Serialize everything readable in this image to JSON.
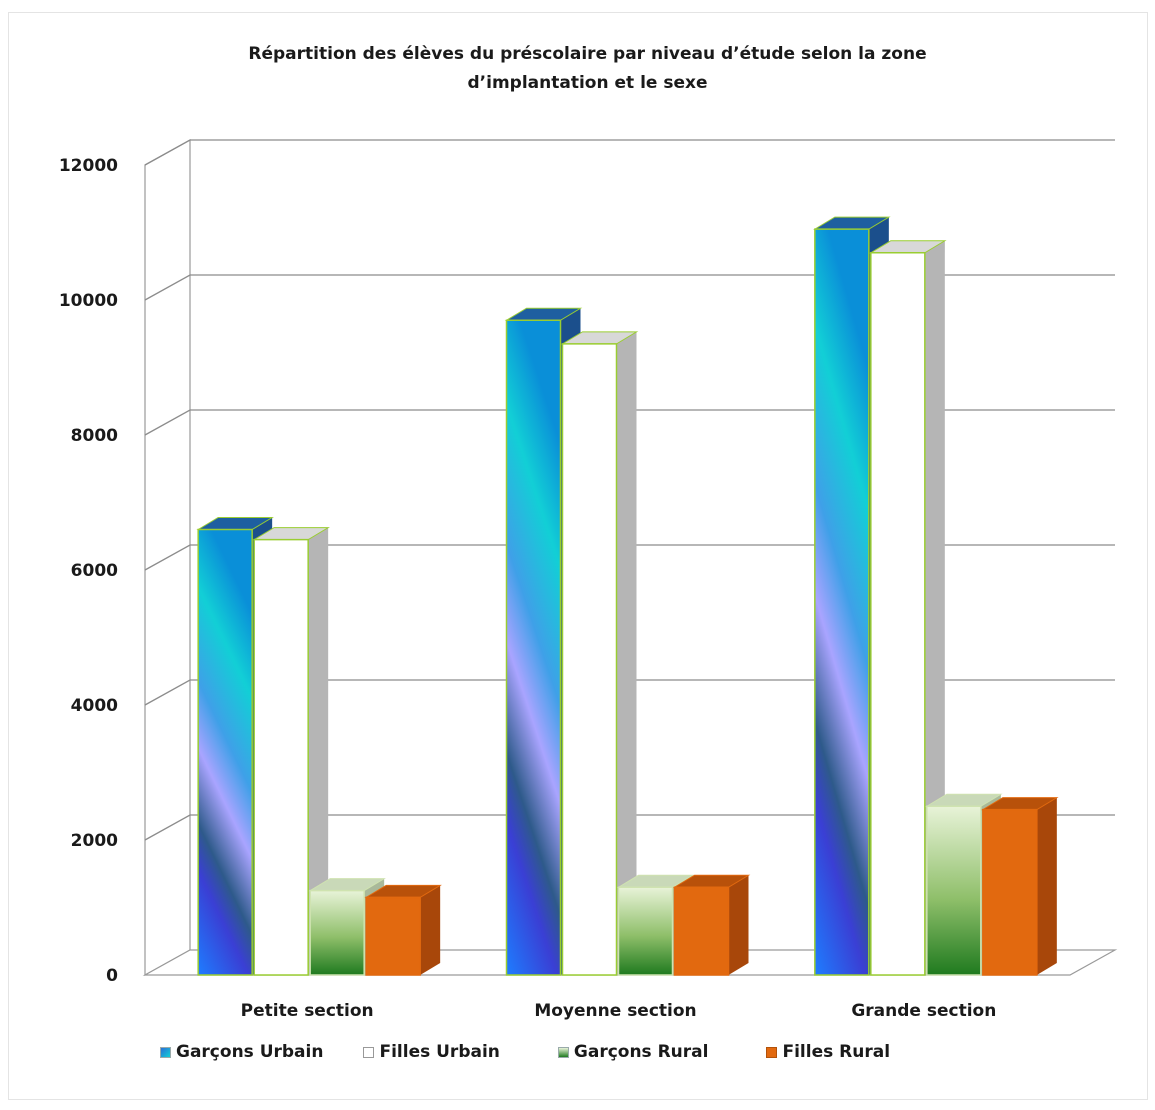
{
  "chart_data": {
    "type": "bar",
    "title": "Répartition des élèves du préscolaire par niveau d'étude selon la zone d'implantation et le sexe",
    "title_lines": [
      "Répartition  des élèves du préscolaire  par niveau d’étude selon la zone",
      "d’implantation et le sexe"
    ],
    "categories": [
      "Petite section",
      "Moyenne section",
      "Grande section"
    ],
    "series": [
      {
        "name": "Garçons Urbain",
        "values": [
          6600,
          9700,
          11050
        ],
        "color": "#2a6fd6"
      },
      {
        "name": "Filles Urbain",
        "values": [
          6450,
          9350,
          10700
        ],
        "color": "#ffffff"
      },
      {
        "name": "Garçons Rural",
        "values": [
          1250,
          1300,
          2500
        ],
        "color": "#3f8f2a"
      },
      {
        "name": "Filles Rural",
        "values": [
          1150,
          1300,
          2450
        ],
        "color": "#e2690f"
      }
    ],
    "ylim": [
      0,
      12000
    ],
    "yticks": [
      0,
      2000,
      4000,
      6000,
      8000,
      10000,
      12000
    ],
    "xlabel": "",
    "ylabel": "",
    "grid": true,
    "legend_position": "bottom",
    "style": "3d-clustered"
  }
}
